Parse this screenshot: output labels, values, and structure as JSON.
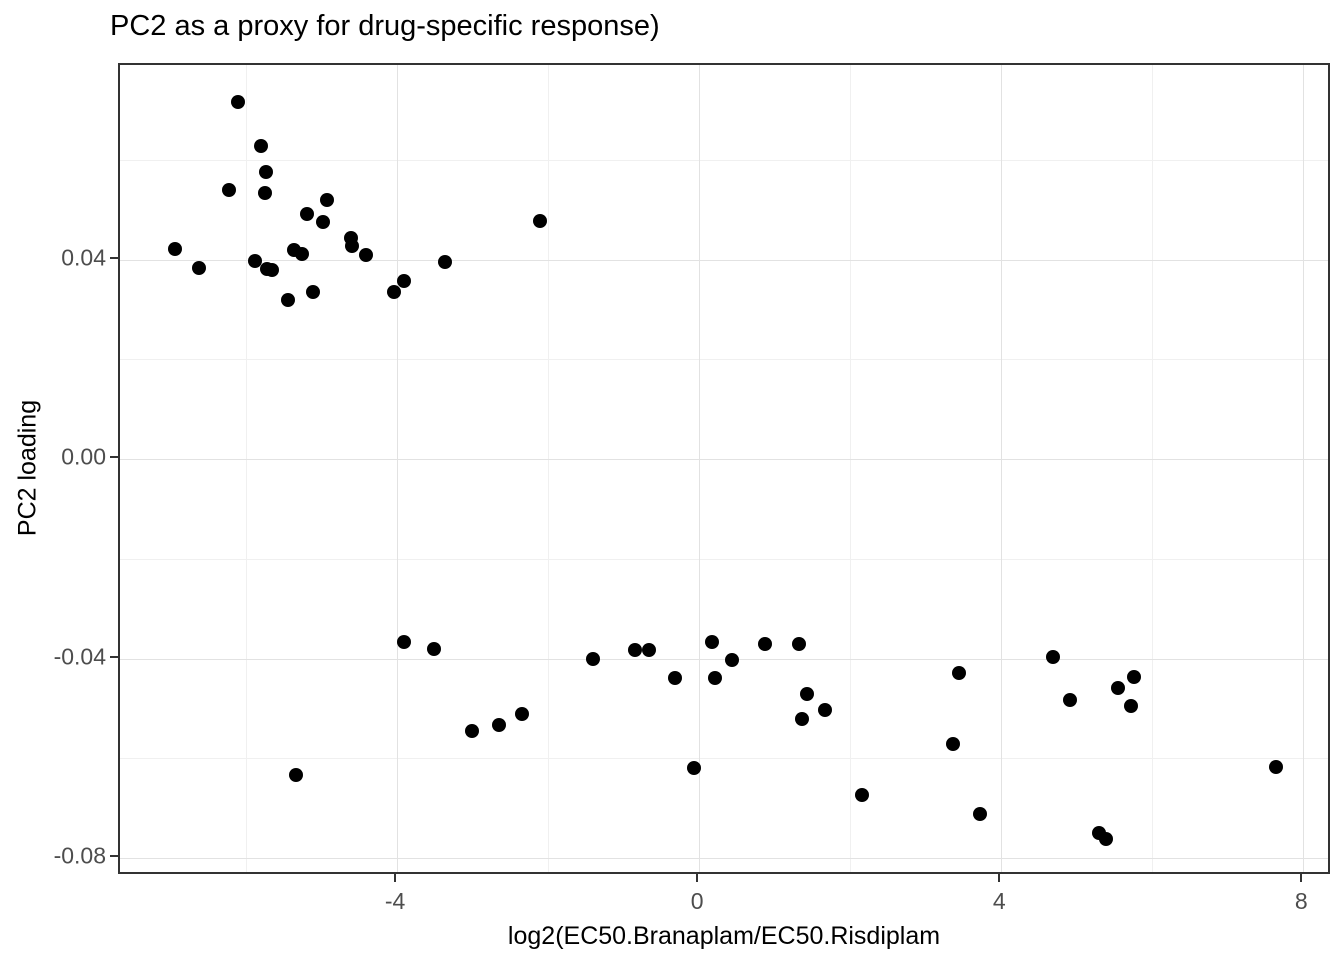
{
  "title": "PC2 as a proxy for drug-specific response)",
  "colors": {
    "point": "#000000",
    "grid_major": "#e2e2e2",
    "grid_minor": "#f0f0f0",
    "panel_border": "#333333",
    "tick_label": "#4d4d4d",
    "title": "#000000",
    "background": "#ffffff"
  },
  "chart_data": {
    "type": "scatter",
    "title": "PC2 as a proxy for drug-specific response)",
    "xlabel": "log2(EC50.Branaplam/EC50.Risdiplam",
    "ylabel": "PC2 loading",
    "xlim": [
      -7.67,
      8.38
    ],
    "ylim": [
      -0.0836,
      0.079
    ],
    "grid": "on",
    "legend": "none",
    "x_ticks": {
      "values": [
        -4,
        0,
        4,
        8
      ],
      "labels": [
        "-4",
        "0",
        "4",
        "8"
      ]
    },
    "y_ticks": {
      "values": [
        0.04,
        0.0,
        -0.04,
        -0.08
      ],
      "labels": [
        "0.04",
        "0.00",
        "-0.04",
        "-0.08"
      ]
    },
    "x_minor": [
      -6,
      -2,
      2,
      6
    ],
    "y_minor": [
      0.06,
      0.02,
      -0.02,
      -0.06
    ],
    "points": [
      [
        -6.11,
        0.0716
      ],
      [
        -5.8,
        0.0628
      ],
      [
        -5.73,
        0.0576
      ],
      [
        -6.23,
        0.0539
      ],
      [
        -5.75,
        0.0533
      ],
      [
        -4.93,
        0.0519
      ],
      [
        -5.19,
        0.0491
      ],
      [
        -4.98,
        0.0475
      ],
      [
        -2.11,
        0.0477
      ],
      [
        -4.61,
        0.0443
      ],
      [
        -4.6,
        0.0427
      ],
      [
        -6.94,
        0.0421
      ],
      [
        -5.36,
        0.0419
      ],
      [
        -5.26,
        0.0411
      ],
      [
        -4.41,
        0.0409
      ],
      [
        -5.88,
        0.0397
      ],
      [
        -3.36,
        0.0395
      ],
      [
        -6.62,
        0.0383
      ],
      [
        -5.72,
        0.0381
      ],
      [
        -5.66,
        0.0379
      ],
      [
        -3.91,
        0.0357
      ],
      [
        -4.04,
        0.0335
      ],
      [
        -5.11,
        0.0335
      ],
      [
        -5.44,
        0.0319
      ],
      [
        -3.91,
        -0.0367
      ],
      [
        0.17,
        -0.0367
      ],
      [
        0.87,
        -0.0371
      ],
      [
        1.32,
        -0.0371
      ],
      [
        -3.51,
        -0.0381
      ],
      [
        -0.85,
        -0.0383
      ],
      [
        -0.66,
        -0.0383
      ],
      [
        -1.4,
        -0.0401
      ],
      [
        0.44,
        -0.0403
      ],
      [
        4.69,
        -0.0397
      ],
      [
        3.44,
        -0.0429
      ],
      [
        -0.32,
        -0.0439
      ],
      [
        0.21,
        -0.0439
      ],
      [
        5.76,
        -0.0437
      ],
      [
        5.54,
        -0.0459
      ],
      [
        1.43,
        -0.0471
      ],
      [
        4.91,
        -0.0483
      ],
      [
        5.72,
        -0.0495
      ],
      [
        1.66,
        -0.0503
      ],
      [
        -2.34,
        -0.0511
      ],
      [
        1.36,
        -0.0521
      ],
      [
        -2.65,
        -0.0533
      ],
      [
        -3.01,
        -0.0545
      ],
      [
        3.36,
        -0.0571
      ],
      [
        -0.07,
        -0.062
      ],
      [
        7.64,
        -0.0618
      ],
      [
        -5.34,
        -0.0634
      ],
      [
        2.15,
        -0.0674
      ],
      [
        3.72,
        -0.0712
      ],
      [
        5.3,
        -0.075
      ],
      [
        5.39,
        -0.0762
      ]
    ]
  }
}
